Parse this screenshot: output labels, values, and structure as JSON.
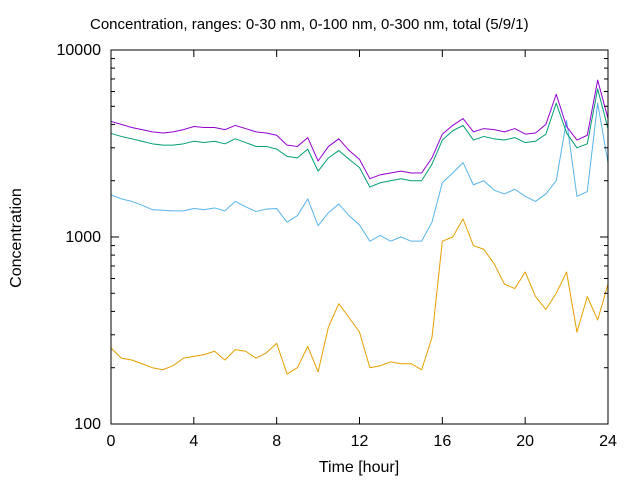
{
  "chart_data": {
    "type": "line",
    "title": "Concentration, ranges: 0-30 nm, 0-100 nm, 0-300 nm, total (5/9/1)",
    "xlabel": "Time [hour]",
    "ylabel": "Concentration",
    "xlim": [
      0,
      24
    ],
    "ylim": [
      100,
      10000
    ],
    "yscale": "log",
    "grid": false,
    "legend": "none",
    "xticks": [
      0,
      4,
      8,
      12,
      16,
      20,
      24
    ],
    "yticks": [
      100,
      1000,
      10000
    ],
    "series": [
      {
        "color": "#e69f00",
        "x": [
          0,
          0.5,
          1,
          1.5,
          2,
          2.5,
          3,
          3.5,
          4,
          4.5,
          5,
          5.5,
          6,
          6.5,
          7,
          7.5,
          8,
          8.5,
          9,
          9.5,
          10,
          10.5,
          11,
          11.5,
          12,
          12.5,
          13,
          13.5,
          14,
          14.5,
          15,
          15.5,
          16,
          16.5,
          17,
          17.5,
          18,
          18.5,
          19,
          19.5,
          20,
          20.5,
          21,
          21.5,
          22,
          22.5,
          23,
          23.5,
          24
        ],
        "y": [
          255,
          225,
          220,
          210,
          200,
          195,
          205,
          225,
          230,
          235,
          245,
          220,
          250,
          245,
          225,
          240,
          270,
          185,
          200,
          260,
          190,
          330,
          440,
          370,
          310,
          200,
          205,
          215,
          210,
          210,
          195,
          290,
          950,
          1000,
          1250,
          900,
          860,
          720,
          560,
          530,
          650,
          480,
          410,
          500,
          650,
          310,
          480,
          360,
          560
        ]
      },
      {
        "color": "#56b4e9",
        "x": [
          0,
          0.5,
          1,
          1.5,
          2,
          2.5,
          3,
          3.5,
          4,
          4.5,
          5,
          5.5,
          6,
          6.5,
          7,
          7.5,
          8,
          8.5,
          9,
          9.5,
          10,
          10.5,
          11,
          11.5,
          12,
          12.5,
          13,
          13.5,
          14,
          14.5,
          15,
          15.5,
          16,
          16.5,
          17,
          17.5,
          18,
          18.5,
          19,
          19.5,
          20,
          20.5,
          21,
          21.5,
          22,
          22.5,
          23,
          23.5,
          24
        ],
        "y": [
          1680,
          1600,
          1550,
          1480,
          1400,
          1390,
          1380,
          1380,
          1420,
          1400,
          1430,
          1380,
          1550,
          1450,
          1370,
          1410,
          1420,
          1200,
          1300,
          1600,
          1150,
          1350,
          1500,
          1300,
          1160,
          950,
          1020,
          950,
          1000,
          950,
          950,
          1200,
          1950,
          2200,
          2500,
          1900,
          2000,
          1780,
          1700,
          1800,
          1650,
          1550,
          1700,
          2000,
          4200,
          1650,
          1750,
          5200,
          2500
        ]
      },
      {
        "color": "#009e73",
        "x": [
          0,
          0.5,
          1,
          1.5,
          2,
          2.5,
          3,
          3.5,
          4,
          4.5,
          5,
          5.5,
          6,
          6.5,
          7,
          7.5,
          8,
          8.5,
          9,
          9.5,
          10,
          10.5,
          11,
          11.5,
          12,
          12.5,
          13,
          13.5,
          14,
          14.5,
          15,
          15.5,
          16,
          16.5,
          17,
          17.5,
          18,
          18.5,
          19,
          19.5,
          20,
          20.5,
          21,
          21.5,
          22,
          22.5,
          23,
          23.5,
          24
        ],
        "y": [
          3580,
          3450,
          3350,
          3250,
          3150,
          3100,
          3100,
          3150,
          3250,
          3200,
          3250,
          3150,
          3350,
          3200,
          3050,
          3050,
          2950,
          2700,
          2650,
          2950,
          2250,
          2650,
          2900,
          2600,
          2350,
          1850,
          1950,
          2000,
          2050,
          2000,
          2000,
          2450,
          3300,
          3700,
          3950,
          3300,
          3450,
          3350,
          3300,
          3400,
          3200,
          3250,
          3550,
          5200,
          3600,
          3000,
          3150,
          6200,
          3800
        ]
      },
      {
        "color": "#9400d3",
        "x": [
          0,
          0.5,
          1,
          1.5,
          2,
          2.5,
          3,
          3.5,
          4,
          4.5,
          5,
          5.5,
          6,
          6.5,
          7,
          7.5,
          8,
          8.5,
          9,
          9.5,
          10,
          10.5,
          11,
          11.5,
          12,
          12.5,
          13,
          13.5,
          14,
          14.5,
          15,
          15.5,
          16,
          16.5,
          17,
          17.5,
          18,
          18.5,
          19,
          19.5,
          20,
          20.5,
          21,
          21.5,
          22,
          22.5,
          23,
          23.5,
          24
        ],
        "y": [
          4150,
          4000,
          3850,
          3750,
          3650,
          3600,
          3650,
          3750,
          3900,
          3850,
          3850,
          3750,
          3950,
          3800,
          3650,
          3600,
          3500,
          3100,
          3050,
          3400,
          2550,
          3050,
          3350,
          2900,
          2600,
          2050,
          2150,
          2200,
          2250,
          2200,
          2200,
          2650,
          3550,
          3950,
          4300,
          3650,
          3800,
          3750,
          3650,
          3800,
          3550,
          3600,
          4000,
          5800,
          3900,
          3300,
          3500,
          6900,
          4300
        ]
      }
    ]
  }
}
